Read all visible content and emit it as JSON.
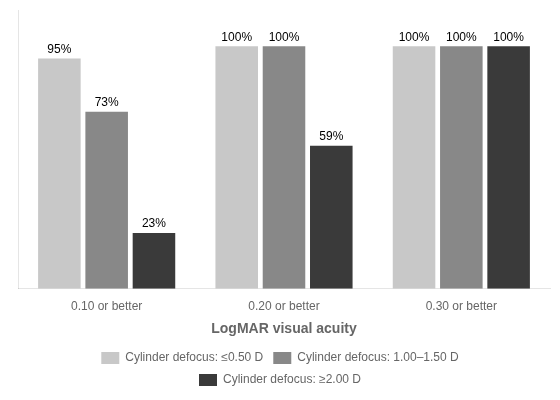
{
  "chart_data": {
    "type": "bar",
    "categories": [
      "0.10 or better",
      "0.20 or better",
      "0.30 or better"
    ],
    "series": [
      {
        "name": "Cylinder defocus: ≤0.50 D",
        "color": "#c8c8c8",
        "values": [
          95,
          100,
          100
        ],
        "value_labels": [
          "95%",
          "100%",
          "100%"
        ]
      },
      {
        "name": "Cylinder defocus: 1.00–1.50 D",
        "color": "#888888",
        "values": [
          73,
          100,
          100
        ],
        "value_labels": [
          "73%",
          "100%",
          "100%"
        ]
      },
      {
        "name": "Cylinder defocus: ≥2.00 D",
        "color": "#3a3a3a",
        "values": [
          23,
          59,
          100
        ],
        "value_labels": [
          "23%",
          "59%",
          "100%"
        ]
      }
    ],
    "xlabel": "LogMAR visual acuity",
    "ylim": [
      0,
      115
    ],
    "yticks": [],
    "grid": false,
    "legend": "bottom",
    "data_labels": true,
    "tick_labels": "x"
  }
}
